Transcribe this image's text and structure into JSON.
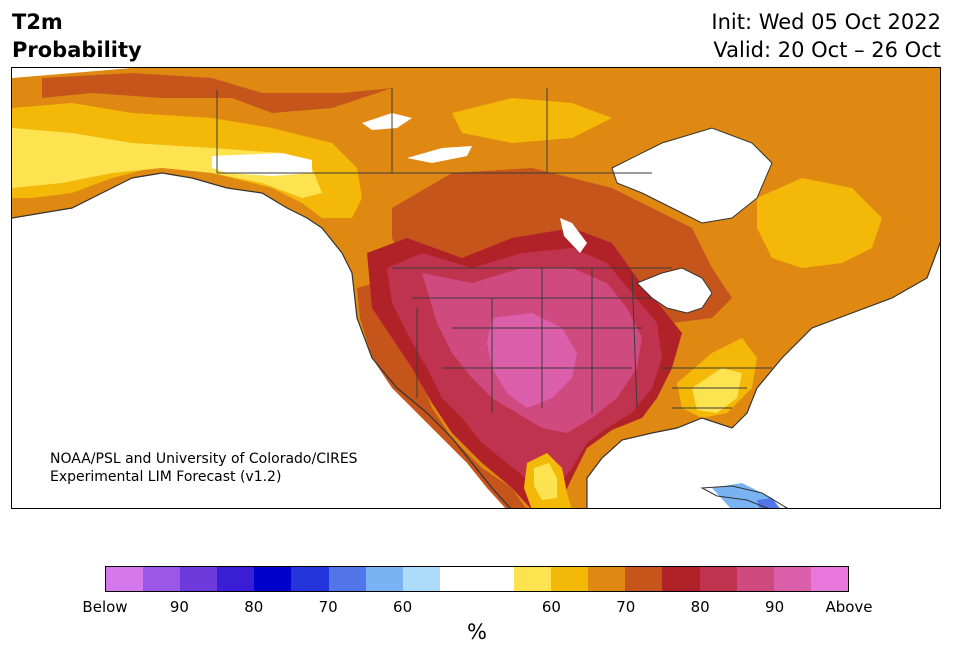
{
  "header": {
    "title_line1": "T2m",
    "title_line2": "Probability",
    "init": "Init: Wed 05 Oct 2022",
    "valid": "Valid: 20 Oct – 26 Oct"
  },
  "credit": {
    "line1": "NOAA/PSL and University of Colorado/CIRES",
    "line2": "Experimental LIM Forecast (v1.2)"
  },
  "colorbar": {
    "unit": "%",
    "colors": [
      "#d478ec",
      "#9b58e6",
      "#6e3adb",
      "#3a1ed6",
      "#0000cd",
      "#2535dc",
      "#5276ea",
      "#7ab3f4",
      "#addcfb",
      "#ffffff",
      "#ffffff",
      "#fde350",
      "#f4b809",
      "#df8912",
      "#c6551c",
      "#b12228",
      "#c0334f",
      "#cf4b7f",
      "#dc5fac",
      "#e877dc"
    ],
    "ticks": [
      {
        "label": "Below"
      },
      {
        "label": "90"
      },
      {
        "label": "80"
      },
      {
        "label": "70"
      },
      {
        "label": "60"
      },
      {
        "label": "60"
      },
      {
        "label": "70"
      },
      {
        "label": "80"
      },
      {
        "label": "90"
      },
      {
        "label": "Above"
      }
    ]
  },
  "map": {
    "region": "North America",
    "probability_fill_colors": {
      "above_60": "#fde350",
      "above_65": "#f4b809",
      "above_70": "#df8912",
      "above_75": "#c6551c",
      "above_80": "#b12228",
      "above_85": "#c0334f",
      "above_90": "#cf4b7f",
      "above_95": "#dc5fac",
      "below_60": "#addcfb",
      "below_65": "#7ab3f4",
      "below_70": "#5276ea"
    }
  }
}
